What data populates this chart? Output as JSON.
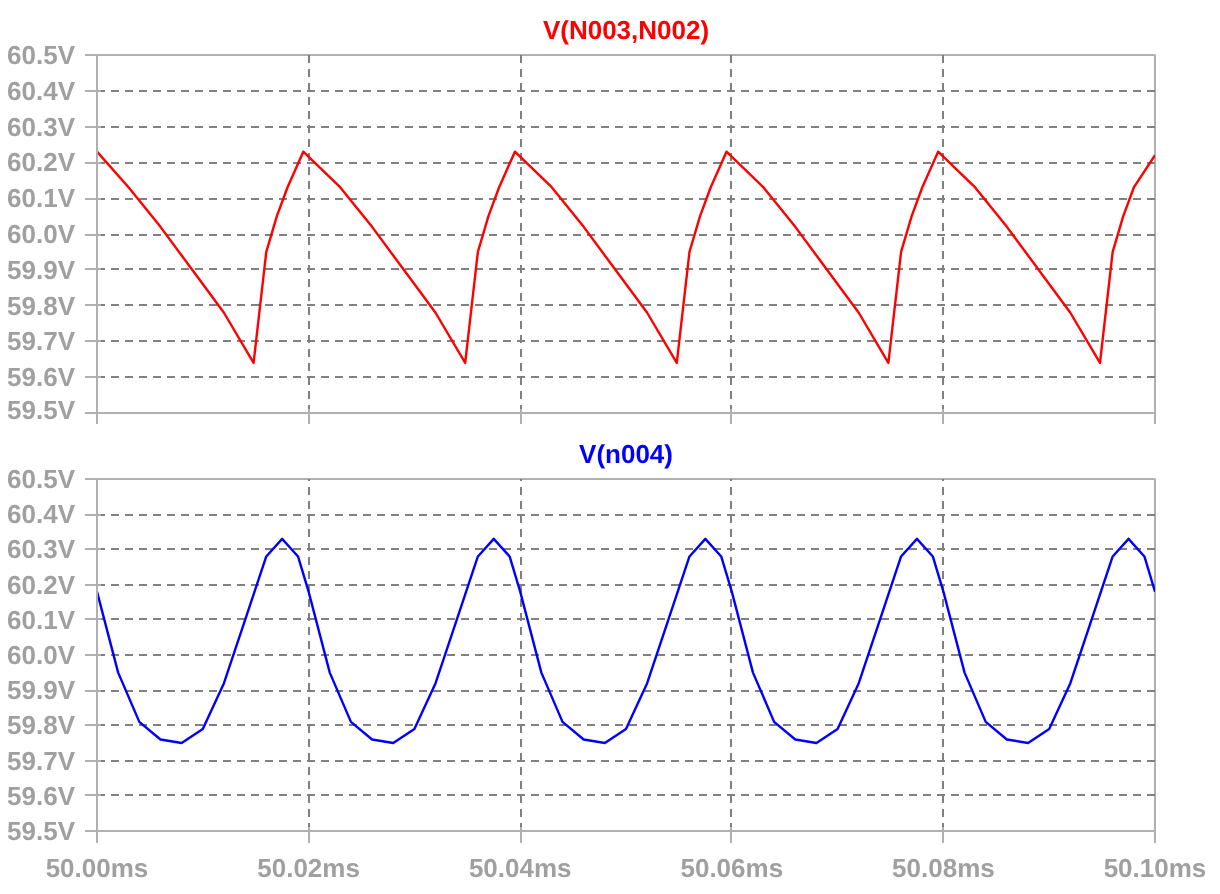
{
  "chart_data": [
    {
      "type": "line",
      "tick_labels": "y",
      "grid": true,
      "xlim": [
        50.0,
        50.1
      ],
      "xticks": [
        {
          "value": 50.0,
          "label": null
        },
        {
          "value": 50.02,
          "label": null
        },
        {
          "value": 50.04,
          "label": null
        },
        {
          "value": 50.06,
          "label": null
        },
        {
          "value": 50.08,
          "label": null
        },
        {
          "value": 50.1,
          "label": null
        }
      ],
      "ylim": [
        59.5,
        60.5
      ],
      "yticks": [
        {
          "value": 59.5,
          "label": "59.5V"
        },
        {
          "value": 59.6,
          "label": "59.6V"
        },
        {
          "value": 59.7,
          "label": "59.7V"
        },
        {
          "value": 59.8,
          "label": "59.8V"
        },
        {
          "value": 59.9,
          "label": "59.9V"
        },
        {
          "value": 60.0,
          "label": "60.0V"
        },
        {
          "value": 60.1,
          "label": "60.1V"
        },
        {
          "value": 60.2,
          "label": "60.2V"
        },
        {
          "value": 60.3,
          "label": "60.3V"
        },
        {
          "value": 60.4,
          "label": "60.4V"
        },
        {
          "value": 60.5,
          "label": "60.5V"
        }
      ],
      "series": [
        {
          "name": "V(N003,N002)",
          "color": "#ff0000",
          "x": [
            50.0,
            50.003,
            50.006,
            50.009,
            50.012,
            50.0148,
            50.016,
            50.017,
            50.018,
            50.0195,
            50.023,
            50.026,
            50.029,
            50.032,
            50.0348,
            50.036,
            50.037,
            50.038,
            50.0395,
            50.043,
            50.046,
            50.049,
            50.052,
            50.0548,
            50.056,
            50.057,
            50.058,
            50.0595,
            50.063,
            50.066,
            50.069,
            50.072,
            50.0748,
            50.076,
            50.077,
            50.078,
            50.0795,
            50.083,
            50.086,
            50.089,
            50.092,
            50.0948,
            50.096,
            50.097,
            50.098,
            50.1
          ],
          "values": [
            60.23,
            60.13,
            60.02,
            59.9,
            59.78,
            59.64,
            59.95,
            60.05,
            60.13,
            60.23,
            60.13,
            60.02,
            59.9,
            59.78,
            59.64,
            59.95,
            60.05,
            60.13,
            60.23,
            60.13,
            60.02,
            59.9,
            59.78,
            59.64,
            59.95,
            60.05,
            60.13,
            60.23,
            60.13,
            60.02,
            59.9,
            59.78,
            59.64,
            59.95,
            60.05,
            60.13,
            60.23,
            60.13,
            60.02,
            59.9,
            59.78,
            59.64,
            59.95,
            60.05,
            60.13,
            60.22
          ]
        }
      ]
    },
    {
      "type": "line",
      "grid": true,
      "xlim": [
        50.0,
        50.1
      ],
      "xticks": [
        {
          "value": 50.0,
          "label": "50.00ms"
        },
        {
          "value": 50.02,
          "label": "50.02ms"
        },
        {
          "value": 50.04,
          "label": "50.04ms"
        },
        {
          "value": 50.06,
          "label": "50.06ms"
        },
        {
          "value": 50.08,
          "label": "50.08ms"
        },
        {
          "value": 50.1,
          "label": "50.10ms"
        }
      ],
      "ylim": [
        59.5,
        60.5
      ],
      "yticks": [
        {
          "value": 59.5,
          "label": "59.5V"
        },
        {
          "value": 59.6,
          "label": "59.6V"
        },
        {
          "value": 59.7,
          "label": "59.7V"
        },
        {
          "value": 59.8,
          "label": "59.8V"
        },
        {
          "value": 59.9,
          "label": "59.9V"
        },
        {
          "value": 60.0,
          "label": "60.0V"
        },
        {
          "value": 60.1,
          "label": "60.1V"
        },
        {
          "value": 60.2,
          "label": "60.2V"
        },
        {
          "value": 60.3,
          "label": "60.3V"
        },
        {
          "value": 60.4,
          "label": "60.4V"
        },
        {
          "value": 60.5,
          "label": "60.5V"
        }
      ],
      "series": [
        {
          "name": "V(n004)",
          "color": "#0000ff",
          "x": [
            50.0,
            50.002,
            50.004,
            50.006,
            50.008,
            50.01,
            50.012,
            50.014,
            50.016,
            50.0175,
            50.019,
            50.02,
            50.022,
            50.024,
            50.026,
            50.028,
            50.03,
            50.032,
            50.034,
            50.036,
            50.0375,
            50.039,
            50.04,
            50.042,
            50.044,
            50.046,
            50.048,
            50.05,
            50.052,
            50.054,
            50.056,
            50.0575,
            50.059,
            50.06,
            50.062,
            50.064,
            50.066,
            50.068,
            50.07,
            50.072,
            50.074,
            50.076,
            50.0775,
            50.079,
            50.08,
            50.082,
            50.084,
            50.086,
            50.088,
            50.09,
            50.092,
            50.094,
            50.096,
            50.0975,
            50.099,
            50.1
          ],
          "values": [
            60.18,
            59.95,
            59.81,
            59.76,
            59.75,
            59.79,
            59.92,
            60.1,
            60.28,
            60.33,
            60.28,
            60.18,
            59.95,
            59.81,
            59.76,
            59.75,
            59.79,
            59.92,
            60.1,
            60.28,
            60.33,
            60.28,
            60.18,
            59.95,
            59.81,
            59.76,
            59.75,
            59.79,
            59.92,
            60.1,
            60.28,
            60.33,
            60.28,
            60.18,
            59.95,
            59.81,
            59.76,
            59.75,
            59.79,
            59.92,
            60.1,
            60.28,
            60.33,
            60.28,
            60.18,
            59.95,
            59.81,
            59.76,
            59.75,
            59.79,
            59.92,
            60.1,
            60.28,
            60.33,
            60.28,
            60.18
          ]
        }
      ]
    }
  ]
}
